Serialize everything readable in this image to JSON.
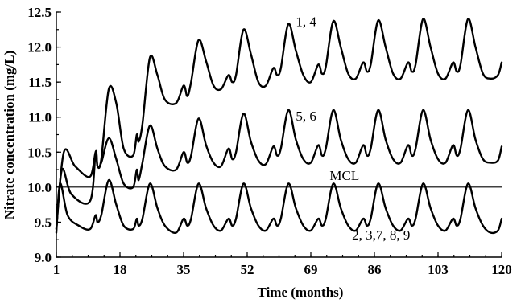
{
  "chart_data": {
    "type": "line",
    "title": "",
    "xlabel": "Time (months)",
    "ylabel": "Nitrate concentration (mg/L)",
    "xlim": [
      1,
      120
    ],
    "ylim": [
      9.0,
      12.5
    ],
    "xticks": [
      "1",
      "18",
      "35",
      "52",
      "69",
      "86",
      "103",
      "120"
    ],
    "yticks": [
      "9.0",
      "9.5",
      "10.0",
      "10.5",
      "11.0",
      "11.5",
      "12.0",
      "12.5"
    ],
    "grid": false,
    "reference_line": {
      "label": "MCL",
      "value": 10.0
    },
    "annotations": [
      {
        "text": "1, 4",
        "x": 65,
        "y": 12.3
      },
      {
        "text": "5, 6",
        "x": 65,
        "y": 10.95
      },
      {
        "text": "MCL",
        "x": 78,
        "y": 10.1
      },
      {
        "text": "2, 3,7, 8, 9",
        "x": 80,
        "y": 9.25
      }
    ],
    "series": [
      {
        "label": "1, 4",
        "x": [
          1,
          3,
          6,
          10,
          11.5,
          12,
          13,
          15,
          17,
          19,
          21.5,
          22.5,
          23,
          24,
          26,
          28,
          30,
          33,
          35,
          36,
          37,
          39,
          41,
          43,
          45,
          47,
          48,
          49,
          51,
          53,
          55,
          57,
          59,
          60,
          61,
          63,
          65,
          67,
          69,
          71,
          72,
          73,
          75,
          77,
          79,
          81,
          83,
          84,
          85,
          87,
          89,
          91,
          93,
          95,
          96,
          97,
          99,
          101,
          103,
          105,
          107,
          108,
          109,
          111,
          113,
          115,
          117,
          119,
          120
        ],
        "y": [
          9.4,
          10.5,
          10.3,
          10.15,
          10.5,
          10.3,
          10.4,
          11.4,
          11.2,
          10.55,
          10.45,
          10.75,
          10.65,
          10.9,
          11.85,
          11.6,
          11.25,
          11.2,
          11.45,
          11.3,
          11.5,
          12.1,
          11.8,
          11.45,
          11.4,
          11.6,
          11.5,
          11.6,
          12.25,
          11.9,
          11.5,
          11.45,
          11.7,
          11.6,
          11.7,
          12.33,
          11.95,
          11.6,
          11.5,
          11.75,
          11.62,
          11.72,
          12.37,
          12.0,
          11.62,
          11.55,
          11.78,
          11.65,
          11.75,
          12.38,
          12.0,
          11.62,
          11.55,
          11.78,
          11.65,
          11.75,
          12.4,
          12.0,
          11.62,
          11.55,
          11.78,
          11.65,
          11.75,
          12.4,
          12.0,
          11.62,
          11.55,
          11.6,
          11.78
        ]
      },
      {
        "label": "5, 6",
        "x": [
          1,
          2.5,
          5,
          10,
          11.5,
          12,
          13,
          15,
          17,
          19,
          21.5,
          22.5,
          23,
          24,
          26,
          28,
          30,
          33,
          35,
          36,
          37,
          39,
          41,
          43,
          45,
          47,
          48,
          49,
          51,
          53,
          55,
          57,
          59,
          60,
          61,
          63,
          65,
          67,
          69,
          71,
          72,
          73,
          75,
          77,
          79,
          81,
          83,
          84,
          85,
          87,
          89,
          91,
          93,
          95,
          96,
          97,
          99,
          101,
          103,
          105,
          107,
          108,
          109,
          111,
          113,
          115,
          117,
          119,
          120
        ],
        "y": [
          9.4,
          10.25,
          9.9,
          9.8,
          10.5,
          10.3,
          10.35,
          10.7,
          10.4,
          10.05,
          10.0,
          10.25,
          10.1,
          10.35,
          10.88,
          10.55,
          10.3,
          10.25,
          10.5,
          10.35,
          10.45,
          10.98,
          10.6,
          10.35,
          10.3,
          10.55,
          10.4,
          10.5,
          11.05,
          10.65,
          10.38,
          10.33,
          10.58,
          10.45,
          10.55,
          11.1,
          10.68,
          10.4,
          10.35,
          10.6,
          10.45,
          10.55,
          11.1,
          10.68,
          10.4,
          10.35,
          10.6,
          10.45,
          10.55,
          11.1,
          10.68,
          10.4,
          10.35,
          10.6,
          10.45,
          10.55,
          11.1,
          10.68,
          10.4,
          10.35,
          10.6,
          10.45,
          10.55,
          11.1,
          10.68,
          10.4,
          10.35,
          10.38,
          10.58
        ]
      },
      {
        "label": "2, 3,7, 8, 9",
        "x": [
          1,
          2,
          4,
          7,
          10,
          11.5,
          12,
          13,
          15,
          17,
          19,
          21.5,
          22.5,
          23,
          24,
          26,
          28,
          30,
          33,
          35,
          36,
          37,
          39,
          41,
          43,
          45,
          47,
          48,
          49,
          51,
          53,
          55,
          57,
          59,
          60,
          61,
          63,
          65,
          67,
          69,
          71,
          72,
          73,
          75,
          77,
          79,
          81,
          83,
          84,
          85,
          87,
          89,
          91,
          93,
          95,
          96,
          97,
          99,
          101,
          103,
          105,
          107,
          108,
          109,
          111,
          113,
          115,
          117,
          119,
          120
        ],
        "y": [
          9.35,
          10.05,
          9.6,
          9.45,
          9.4,
          9.6,
          9.5,
          9.6,
          10.1,
          9.75,
          9.45,
          9.4,
          9.55,
          9.45,
          9.55,
          10.05,
          9.7,
          9.45,
          9.35,
          9.55,
          9.45,
          9.55,
          10.05,
          9.7,
          9.45,
          9.38,
          9.55,
          9.45,
          9.55,
          10.05,
          9.7,
          9.45,
          9.38,
          9.55,
          9.45,
          9.55,
          10.05,
          9.7,
          9.45,
          9.38,
          9.55,
          9.45,
          9.55,
          10.05,
          9.7,
          9.45,
          9.38,
          9.55,
          9.45,
          9.55,
          10.05,
          9.7,
          9.45,
          9.38,
          9.55,
          9.45,
          9.55,
          10.05,
          9.7,
          9.45,
          9.38,
          9.55,
          9.45,
          9.55,
          10.05,
          9.7,
          9.45,
          9.35,
          9.38,
          9.55
        ]
      }
    ]
  }
}
